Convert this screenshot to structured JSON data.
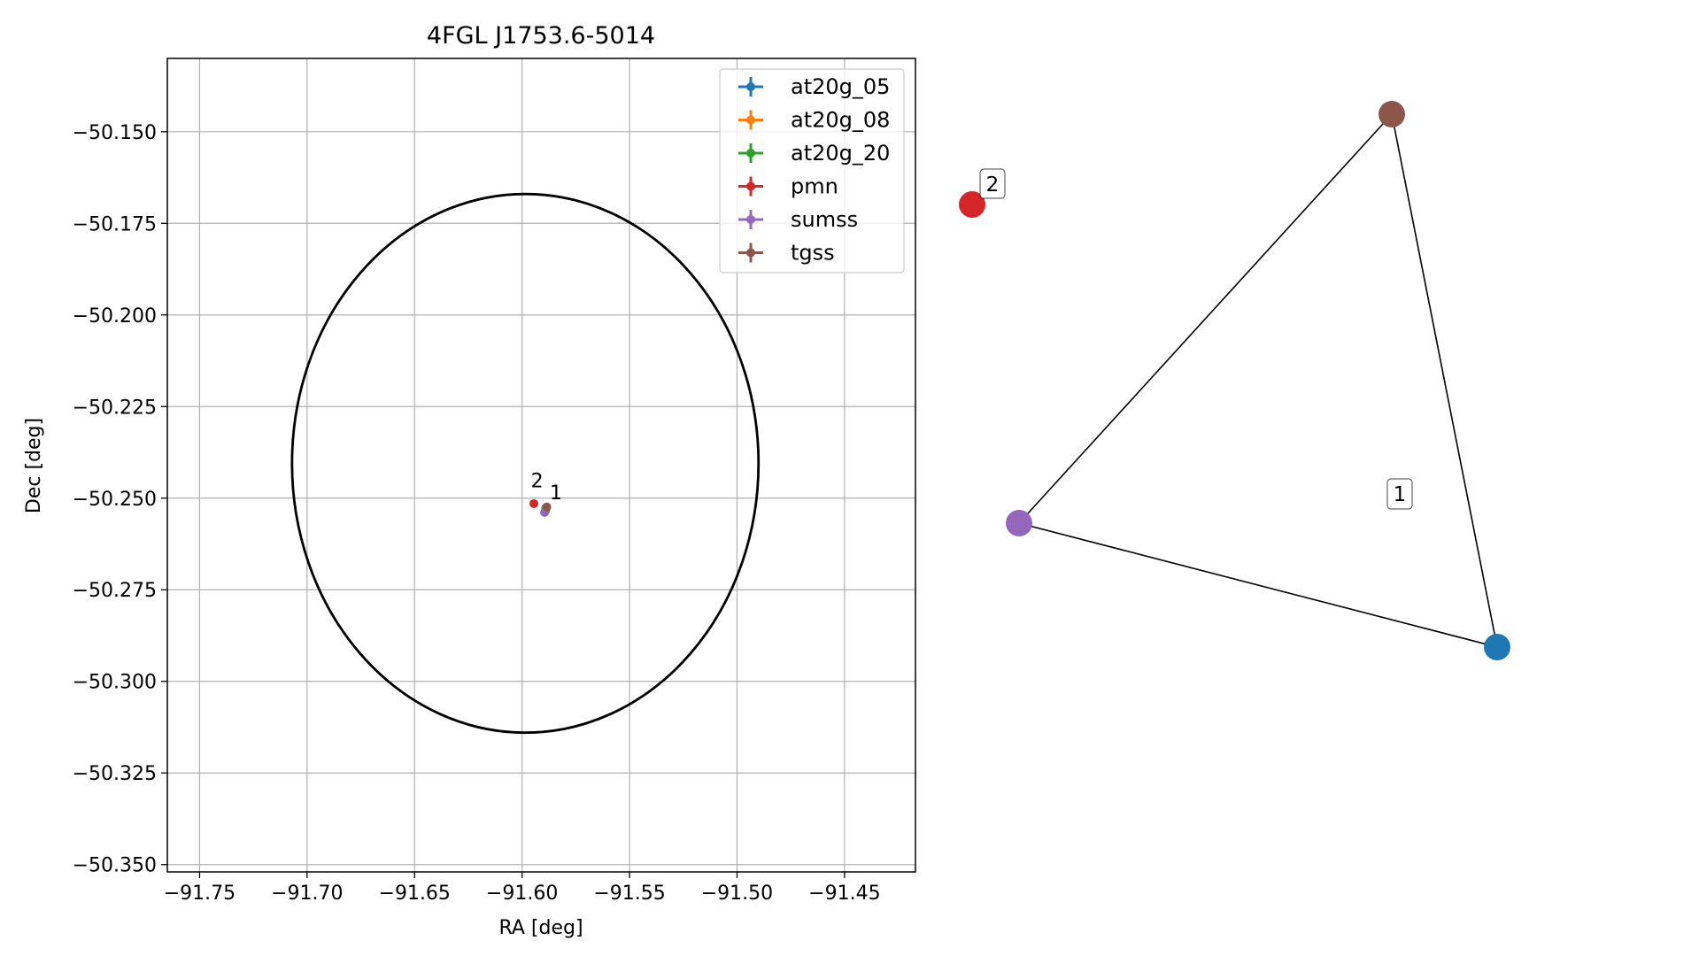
{
  "chart_data": [
    {
      "type": "scatter",
      "title": "4FGL J1753.6-5014",
      "xlabel": "RA [deg]",
      "ylabel": "Dec [deg]",
      "xlim": [
        -91.765,
        -91.417
      ],
      "ylim": [
        -50.352,
        -50.13
      ],
      "grid": true,
      "legend_position": "upper right",
      "xticks": [
        -91.75,
        -91.7,
        -91.65,
        -91.6,
        -91.55,
        -91.5,
        -91.45
      ],
      "xtick_labels": [
        "−91.75",
        "−91.70",
        "−91.65",
        "−91.60",
        "−91.55",
        "−91.50",
        "−91.45"
      ],
      "yticks": [
        -50.15,
        -50.175,
        -50.2,
        -50.225,
        -50.25,
        -50.275,
        -50.3,
        -50.325,
        -50.35
      ],
      "ytick_labels": [
        "−50.150",
        "−50.175",
        "−50.200",
        "−50.225",
        "−50.250",
        "−50.275",
        "−50.300",
        "−50.325",
        "−50.350"
      ],
      "ellipse": {
        "center": [
          -91.5985,
          -50.2405
        ],
        "ra_semi_axis": 0.1085,
        "dec_semi_axis": 0.0735,
        "color": "#000000"
      },
      "series": [
        {
          "name": "at20g_05",
          "color": "#1f77b4",
          "points": [
            {
              "x": -91.589,
              "y": -50.2527
            }
          ]
        },
        {
          "name": "at20g_08",
          "color": "#ff7f0e",
          "points": [
            {
              "x": -91.589,
              "y": -50.253
            }
          ]
        },
        {
          "name": "at20g_20",
          "color": "#2ca02c",
          "points": [
            {
              "x": -91.589,
              "y": -50.2533
            }
          ]
        },
        {
          "name": "pmn",
          "color": "#d62728",
          "points": [
            {
              "x": -91.5945,
              "y": -50.2515
            }
          ]
        },
        {
          "name": "sumss",
          "color": "#9467bd",
          "points": [
            {
              "x": -91.5895,
              "y": -50.2539
            }
          ]
        },
        {
          "name": "tgss",
          "color": "#8c564b",
          "points": [
            {
              "x": -91.5885,
              "y": -50.2524
            }
          ]
        }
      ],
      "annotations": [
        {
          "text": "2",
          "x": -91.593,
          "y": -50.247
        },
        {
          "text": "1",
          "x": -91.5842,
          "y": -50.2503
        }
      ]
    },
    {
      "type": "graph",
      "nodes": [
        {
          "id": "pmn",
          "color": "#d62728"
        },
        {
          "id": "tgss",
          "color": "#8c564b"
        },
        {
          "id": "sumss",
          "color": "#9467bd"
        },
        {
          "id": "at20g_05",
          "color": "#1f77b4"
        }
      ],
      "edges": [
        [
          "tgss",
          "sumss"
        ],
        [
          "tgss",
          "at20g_05"
        ],
        [
          "sumss",
          "at20g_05"
        ]
      ],
      "cluster_labels": [
        "2",
        "1"
      ]
    }
  ]
}
